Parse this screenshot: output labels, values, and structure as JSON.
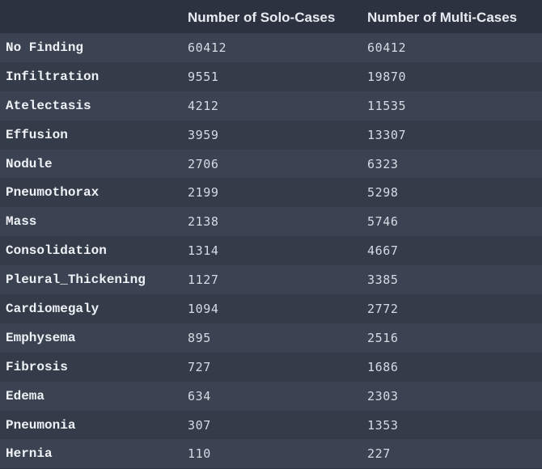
{
  "header": {
    "label_col": "",
    "solo_col": "Number of Solo-Cases",
    "multi_col": "Number of Multi-Cases"
  },
  "rows": [
    {
      "label": "No Finding",
      "solo": "60412",
      "multi": "60412"
    },
    {
      "label": "Infiltration",
      "solo": "9551",
      "multi": "19870"
    },
    {
      "label": "Atelectasis",
      "solo": "4212",
      "multi": "11535"
    },
    {
      "label": "Effusion",
      "solo": "3959",
      "multi": "13307"
    },
    {
      "label": "Nodule",
      "solo": "2706",
      "multi": "6323"
    },
    {
      "label": "Pneumothorax",
      "solo": "2199",
      "multi": "5298"
    },
    {
      "label": "Mass",
      "solo": "2138",
      "multi": "5746"
    },
    {
      "label": "Consolidation",
      "solo": "1314",
      "multi": "4667"
    },
    {
      "label": "Pleural_Thickening",
      "solo": "1127",
      "multi": "3385"
    },
    {
      "label": "Cardiomegaly",
      "solo": "1094",
      "multi": "2772"
    },
    {
      "label": "Emphysema",
      "solo": "895",
      "multi": "2516"
    },
    {
      "label": "Fibrosis",
      "solo": "727",
      "multi": "1686"
    },
    {
      "label": "Edema",
      "solo": "634",
      "multi": "2303"
    },
    {
      "label": "Pneumonia",
      "solo": "307",
      "multi": "1353"
    },
    {
      "label": "Hernia",
      "solo": "110",
      "multi": "227"
    }
  ],
  "colors": {
    "background": "#2f3542",
    "row_odd": "#3b4352",
    "row_even": "#343b49",
    "text": "#e8ecf2"
  }
}
